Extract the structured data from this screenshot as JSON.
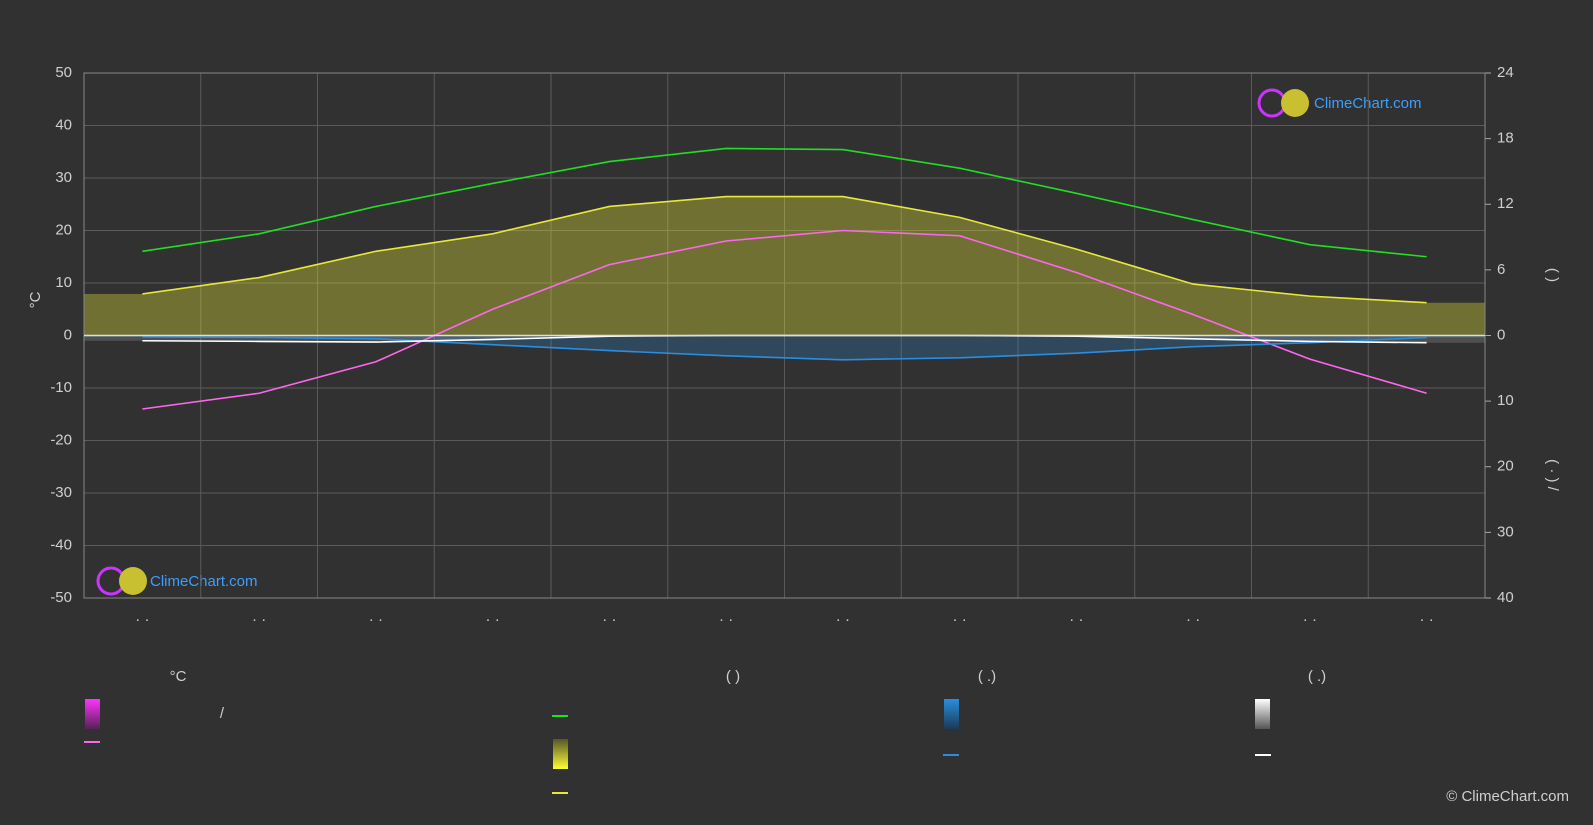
{
  "chart_data": {
    "type": "climate",
    "y_label": "°C",
    "y2_label": "(          )",
    "y3_label": "( · )   /",
    "categories": [
      "· ·",
      "· ·",
      "· ·",
      "· ·",
      "· ·",
      "· ·",
      "· ·",
      "· ·",
      "· ·",
      "· ·",
      "· ·",
      "· ·"
    ],
    "ylim": [
      -50,
      50
    ],
    "yticks": [
      -50,
      -40,
      -30,
      -20,
      -10,
      0,
      10,
      20,
      30,
      40,
      50
    ],
    "y2lim": [
      0,
      24
    ],
    "y2ticks": [
      0,
      6,
      12,
      18,
      24
    ],
    "y3lim": [
      0,
      40
    ],
    "y3ticks": [
      10,
      20,
      30,
      40
    ],
    "grid": true,
    "series": [
      {
        "color": "#ff66ee",
        "axis": "y",
        "values": [
          -14,
          -11,
          -5,
          5,
          13.5,
          18,
          20,
          19,
          12,
          4,
          -4.5,
          -11
        ]
      },
      {
        "color": "#22dd22",
        "axis": "y2",
        "values": [
          7.7,
          9.3,
          11.8,
          13.9,
          15.9,
          17.1,
          17.0,
          15.3,
          13.0,
          10.6,
          8.3,
          7.2
        ]
      },
      {
        "color": "#e8e83a",
        "axis": "y2",
        "values": [
          3.8,
          5.3,
          7.7,
          9.3,
          11.8,
          12.7,
          12.7,
          10.8,
          7.9,
          4.7,
          3.6,
          3.0
        ]
      },
      {
        "color": "#2a8ee0",
        "axis": "y3",
        "values": [
          0.2,
          0.3,
          0.5,
          1.4,
          2.3,
          3.1,
          3.7,
          3.4,
          2.7,
          1.7,
          1.1,
          0.3
        ]
      },
      {
        "color": "#ffffff",
        "axis": "y3",
        "values": [
          0.8,
          0.9,
          1.0,
          0.6,
          0.1,
          0,
          0,
          0,
          0.1,
          0.5,
          0.9,
          1.1
        ]
      }
    ],
    "legend": {
      "headers": [
        "°C",
        "(          )",
        "(   .)",
        "(   .)"
      ],
      "slash": "/"
    },
    "logo": "ClimeChart.com",
    "copyright": "© ClimeChart.com"
  }
}
